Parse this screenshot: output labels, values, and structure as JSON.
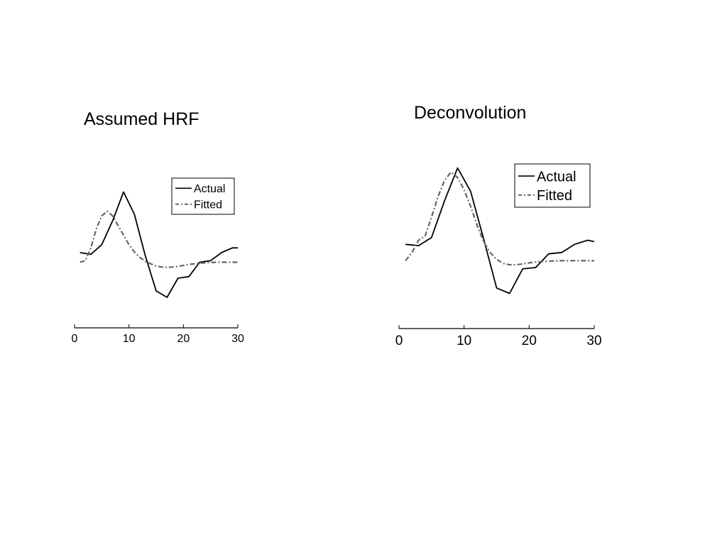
{
  "chart_data": [
    {
      "type": "line",
      "title": "Assumed HRF",
      "xlim": [
        0,
        30
      ],
      "xticks": [
        0,
        10,
        20,
        30
      ],
      "ylim": [
        -1.3,
        2.7
      ],
      "legend": "top-right",
      "series": [
        {
          "name": "Actual",
          "color": "#000000",
          "style": "solid",
          "x": [
            1,
            3,
            5,
            7,
            9,
            11,
            13,
            15,
            17,
            19,
            21,
            23,
            25,
            27,
            29,
            30
          ],
          "y": [
            0.3,
            0.25,
            0.55,
            1.3,
            2.2,
            1.5,
            0.2,
            -0.9,
            -1.1,
            -0.5,
            -0.45,
            0.0,
            0.05,
            0.3,
            0.45,
            0.45
          ]
        },
        {
          "name": "Fitted",
          "color": "#666666",
          "style": "dashed",
          "x": [
            1,
            2,
            3,
            4,
            5,
            6,
            7,
            8,
            9,
            10,
            11,
            12,
            13,
            14,
            15,
            16,
            17,
            18,
            19,
            20,
            21,
            22,
            23,
            24,
            25,
            26,
            27,
            28,
            29,
            30
          ],
          "y": [
            0.0,
            0.05,
            0.45,
            1.05,
            1.45,
            1.6,
            1.45,
            1.15,
            0.85,
            0.55,
            0.32,
            0.15,
            0.03,
            -0.05,
            -0.12,
            -0.15,
            -0.16,
            -0.15,
            -0.13,
            -0.1,
            -0.07,
            -0.05,
            -0.03,
            -0.02,
            -0.01,
            0.0,
            0.0,
            0.0,
            0.0,
            0.0
          ]
        }
      ]
    },
    {
      "type": "line",
      "title": "Deconvolution",
      "xlim": [
        0,
        30
      ],
      "xticks": [
        0,
        10,
        20,
        30
      ],
      "ylim": [
        -1.5,
        3.6
      ],
      "legend": "top-right",
      "series": [
        {
          "name": "Actual",
          "color": "#000000",
          "style": "solid",
          "x": [
            1,
            3,
            5,
            7,
            9,
            11,
            13,
            15,
            17,
            19,
            21,
            23,
            25,
            27,
            29,
            30
          ],
          "y": [
            0.6,
            0.55,
            0.85,
            2.2,
            3.4,
            2.55,
            0.8,
            -1.0,
            -1.2,
            -0.3,
            -0.25,
            0.25,
            0.3,
            0.6,
            0.75,
            0.7
          ]
        },
        {
          "name": "Fitted",
          "color": "#666666",
          "style": "dashed",
          "x": [
            1,
            2,
            3,
            4,
            5,
            6,
            7,
            8,
            9,
            10,
            11,
            12,
            13,
            14,
            15,
            16,
            17,
            18,
            19,
            20,
            21,
            22,
            23,
            24,
            25,
            26,
            27,
            28,
            29,
            30
          ],
          "y": [
            0.0,
            0.3,
            0.75,
            0.9,
            1.6,
            2.35,
            2.95,
            3.25,
            3.05,
            2.6,
            2.0,
            1.3,
            0.7,
            0.3,
            0.05,
            -0.1,
            -0.15,
            -0.15,
            -0.12,
            -0.08,
            -0.05,
            -0.03,
            -0.02,
            -0.01,
            0.0,
            0.0,
            0.0,
            0.0,
            0.0,
            0.0
          ]
        }
      ]
    }
  ]
}
